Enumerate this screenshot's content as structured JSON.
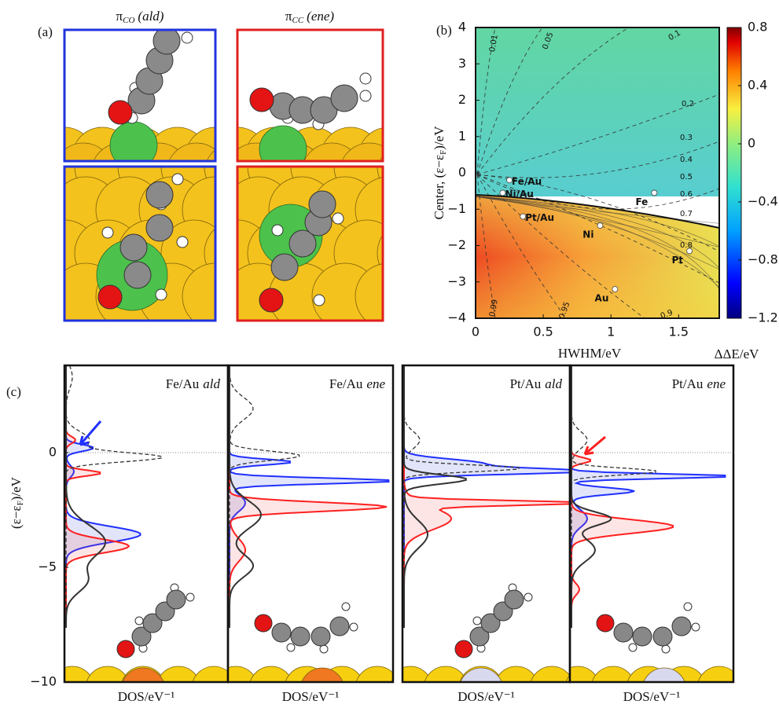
{
  "panel_a": {
    "label": "(a)",
    "title_left": {
      "symbol": "π",
      "subscript": "CO",
      "tag": "(ald)"
    },
    "title_right": {
      "symbol": "π",
      "subscript": "CC",
      "tag": "(ene)"
    }
  },
  "chart_data": [
    {
      "type": "contour",
      "label": "(b)",
      "ylabel": {
        "main": "Center, (ε−ε",
        "subscript": "F",
        "end": ")/eV"
      },
      "xlabel": "HWHM/eV",
      "colorbar_label": "ΔΔE/eV",
      "xlim": [
        0,
        1.8
      ],
      "ylim": [
        -4,
        4
      ],
      "xticks": [
        0,
        0.5,
        1,
        1.5
      ],
      "yticks": [
        {
          "value": -4,
          "label": "−4"
        },
        {
          "value": -3,
          "label": "−3"
        },
        {
          "value": -2,
          "label": "−2"
        },
        {
          "value": -1,
          "label": "−1"
        },
        0,
        1,
        2,
        3,
        4
      ],
      "colorbar": {
        "lim": [
          -1.2,
          0.8
        ],
        "ticks": [
          0.8,
          0.4,
          0,
          {
            "value": -0.4,
            "label": "−0.4"
          },
          {
            "value": -0.8,
            "label": "−0.8"
          },
          {
            "value": -1.2,
            "label": "−1.2"
          }
        ]
      },
      "contour_labels": [
        0.01,
        0.05,
        0.1,
        0.2,
        0.3,
        0.4,
        0.5,
        0.6,
        0.7,
        0.8,
        0.99,
        0.95,
        0.9
      ],
      "points": [
        {
          "name": "Fe/Au",
          "x": 0.25,
          "y": -0.2
        },
        {
          "name": "Ni/Au",
          "x": 0.2,
          "y": -0.55
        },
        {
          "name": "Pt/Au",
          "x": 0.35,
          "y": -1.2
        },
        {
          "name": "Ni",
          "x": 0.92,
          "y": -1.45
        },
        {
          "name": "Fe",
          "x": 1.32,
          "y": -0.55
        },
        {
          "name": "Pt",
          "x": 1.58,
          "y": -2.15
        },
        {
          "name": "Au",
          "x": 1.03,
          "y": -3.2
        }
      ]
    },
    {
      "type": "dos",
      "label": "(c)",
      "ylabel": {
        "main": "(ε−ε",
        "subscript": "F",
        "end": ")/eV"
      },
      "ylim": [
        -10,
        3.8
      ],
      "yticks": [
        {
          "value": -10,
          "label": "−10"
        },
        {
          "value": -5,
          "label": "−5"
        },
        0
      ],
      "panels": [
        {
          "system": "Fe/Au",
          "state": "ald",
          "xlabel": "DOS/eV⁻¹"
        },
        {
          "system": "Fe/Au",
          "state": "ene",
          "xlabel": "DOS/eV⁻¹"
        },
        {
          "system": "Pt/Au",
          "state": "ald",
          "xlabel": "DOS/eV⁻¹"
        },
        {
          "system": "Pt/Au",
          "state": "ene",
          "xlabel": "DOS/eV⁻¹"
        }
      ]
    }
  ]
}
